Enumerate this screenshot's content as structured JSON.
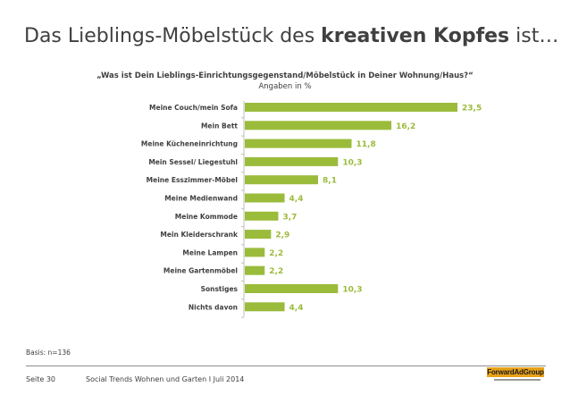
{
  "header": {
    "title_prefix": "Das Lieblings-Möbelstück des ",
    "title_bold": "kreativen Kopfes",
    "title_suffix": " ist…"
  },
  "chart_data": {
    "type": "bar",
    "orientation": "horizontal",
    "title": "„Was ist Dein Lieblings-Einrichtungsgegenstand/Möbelstück in Deiner Wohnung/Haus?“",
    "subtitle": "Angaben in %",
    "categories": [
      "Meine Couch/mein Sofa",
      "Mein Bett",
      "Meine Kücheneinrichtung",
      "Mein Sessel/ Liegestuhl",
      "Meine Esszimmer-Möbel",
      "Meine Medienwand",
      "Meine Kommode",
      "Mein Kleiderschrank",
      "Meine Lampen",
      "Meine Gartenmöbel",
      "Sonstiges",
      "Nichts davon"
    ],
    "values": [
      23.5,
      16.2,
      11.8,
      10.3,
      8.1,
      4.4,
      3.7,
      2.9,
      2.2,
      2.2,
      10.3,
      4.4
    ],
    "value_labels": [
      "23,5",
      "16,2",
      "11,8",
      "10,3",
      "8,1",
      "4,4",
      "3,7",
      "2,9",
      "2,2",
      "2,2",
      "10,3",
      "4,4"
    ],
    "xlim": [
      0,
      23.5
    ],
    "bar_color": "#9bbb3b",
    "label_color": "#9bbb3b",
    "grid": false,
    "legend": "none"
  },
  "footer": {
    "basis": "Basis: n=136",
    "page": "Seite 30",
    "source": "Social Trends Wohnen und Garten I Juli 2014",
    "logo_text": "ForwardAdGroup",
    "logo_color": "#e8a21a"
  }
}
